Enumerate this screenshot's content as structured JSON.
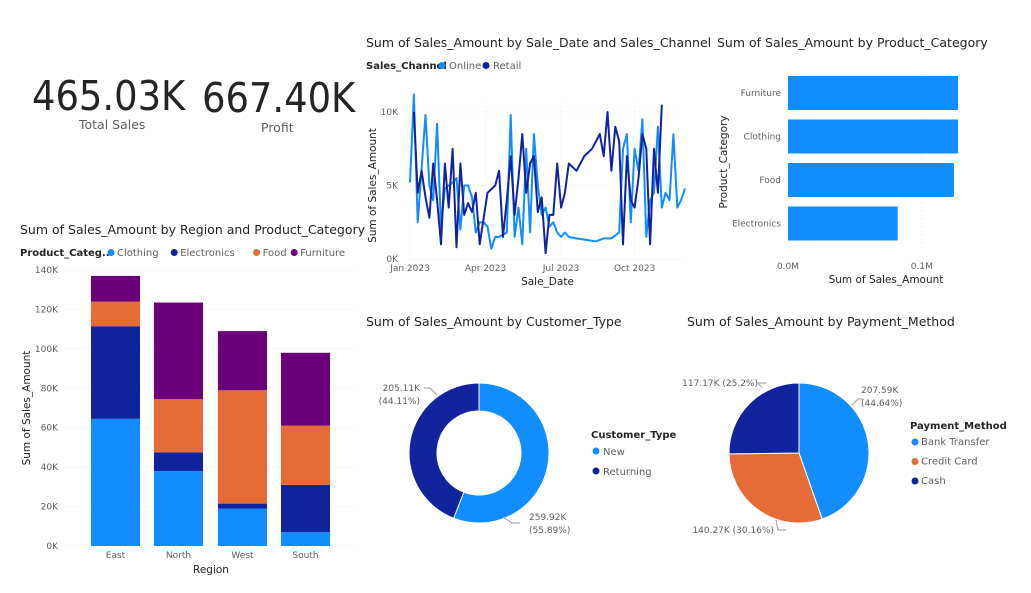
{
  "kpis": {
    "total_sales": {
      "value": "465.03K",
      "label": "Total Sales"
    },
    "profit": {
      "value": "667.40K",
      "label": "Profit"
    }
  },
  "colors": {
    "online": "#118DFF",
    "retail": "#12239E",
    "clothing": "#118DFF",
    "electronics": "#12239E",
    "food": "#E66C37",
    "furniture": "#6B007B",
    "new": "#118DFF",
    "returning": "#12239E",
    "bank_transfer": "#118DFF",
    "credit_card": "#E66C37",
    "cash": "#12239E",
    "bar": "#118DFF",
    "grid": "#e6e6e6",
    "axis_text": "#605e5c"
  },
  "titles": {
    "line": "Sum of Sales_Amount by Sale_Date and Sales_Channel",
    "hbar": "Sum of Sales_Amount by Product_Category",
    "stacked": "Sum of Sales_Amount by Region and Product_Category",
    "donut": "Sum of Sales_Amount by Customer_Type",
    "pie": "Sum of Sales_Amount by Payment_Method"
  },
  "chart_data": [
    {
      "id": "line",
      "type": "line",
      "title": "Sum of Sales_Amount by Sale_Date and Sales_Channel",
      "xlabel": "Sale_Date",
      "ylabel": "Sum of Sales_Amount",
      "legend_title": "Sales_Channel",
      "x_ticks": [
        "Jan 2023",
        "Apr 2023",
        "Jul 2023",
        "Oct 2023"
      ],
      "y_ticks": [
        "0K",
        "5K",
        "10K"
      ],
      "ylim": [
        0,
        10000
      ],
      "series": [
        {
          "name": "Online",
          "points": [
            [
              0,
              5200
            ],
            [
              1,
              11200
            ],
            [
              2,
              2500
            ],
            [
              4,
              9800
            ],
            [
              5,
              5000
            ],
            [
              6,
              4000
            ],
            [
              7,
              9200
            ],
            [
              8,
              2200
            ],
            [
              9,
              4800
            ],
            [
              10,
              5000
            ],
            [
              11,
              5200
            ],
            [
              12,
              5500
            ],
            [
              13,
              2000
            ],
            [
              14,
              5000
            ],
            [
              15,
              5000
            ],
            [
              16,
              4200
            ],
            [
              17,
              1800
            ],
            [
              18,
              2500
            ],
            [
              19,
              2500
            ],
            [
              20,
              2200
            ],
            [
              21,
              700
            ],
            [
              22,
              1500
            ],
            [
              23,
              1500
            ],
            [
              25,
              1800
            ],
            [
              26,
              9800
            ],
            [
              27,
              1500
            ],
            [
              28,
              3500
            ],
            [
              29,
              1000
            ],
            [
              30,
              7500
            ],
            [
              31,
              1800
            ],
            [
              32,
              8500
            ],
            [
              33,
              5000
            ],
            [
              34,
              3000
            ],
            [
              35,
              3500
            ],
            [
              36,
              2200
            ],
            [
              37,
              2500
            ],
            [
              38,
              1800
            ],
            [
              39,
              1500
            ],
            [
              40,
              1800
            ],
            [
              41,
              1500
            ],
            [
              43,
              1400
            ],
            [
              48,
              1200
            ],
            [
              50,
              1400
            ],
            [
              52,
              1400
            ],
            [
              54,
              1800
            ],
            [
              55,
              7500
            ],
            [
              56,
              8500
            ],
            [
              57,
              2500
            ],
            [
              58,
              7500
            ],
            [
              59,
              6000
            ],
            [
              60,
              9500
            ],
            [
              61,
              1500
            ],
            [
              62,
              4000
            ],
            [
              63,
              4500
            ],
            [
              64,
              9000
            ],
            [
              65,
              3500
            ],
            [
              66,
              4500
            ],
            [
              67,
              4000
            ],
            [
              68,
              8500
            ],
            [
              69,
              3500
            ],
            [
              70,
              4000
            ],
            [
              71,
              4800
            ]
          ]
        },
        {
          "name": "Retail",
          "points": [
            [
              1,
              10000
            ],
            [
              2,
              4500
            ],
            [
              3,
              6000
            ],
            [
              4,
              4200
            ],
            [
              5,
              2800
            ],
            [
              6,
              6500
            ],
            [
              7,
              4000
            ],
            [
              8,
              1000
            ],
            [
              9,
              6500
            ],
            [
              10,
              3500
            ],
            [
              11,
              7500
            ],
            [
              12,
              800
            ],
            [
              13,
              6500
            ],
            [
              14,
              3000
            ],
            [
              15,
              3800
            ],
            [
              16,
              3200
            ],
            [
              17,
              4500
            ],
            [
              18,
              1000
            ],
            [
              20,
              4500
            ],
            [
              22,
              5000
            ],
            [
              23,
              6000
            ],
            [
              24,
              1500
            ],
            [
              25,
              4000
            ],
            [
              26,
              7000
            ],
            [
              27,
              3000
            ],
            [
              28,
              5500
            ],
            [
              29,
              8500
            ],
            [
              30,
              4500
            ],
            [
              31,
              6500
            ],
            [
              32,
              7000
            ],
            [
              33,
              3200
            ],
            [
              34,
              4200
            ],
            [
              35,
              400
            ],
            [
              36,
              3000
            ],
            [
              37,
              3000
            ],
            [
              38,
              6500
            ],
            [
              39,
              3500
            ],
            [
              40,
              4500
            ],
            [
              41,
              6500
            ],
            [
              43,
              6000
            ],
            [
              45,
              7000
            ],
            [
              47,
              7500
            ],
            [
              49,
              8500
            ],
            [
              50,
              7000
            ],
            [
              51,
              10000
            ],
            [
              52,
              6000
            ],
            [
              53,
              9000
            ],
            [
              54,
              8000
            ],
            [
              55,
              1000
            ],
            [
              56,
              7000
            ],
            [
              57,
              4000
            ],
            [
              58,
              3500
            ],
            [
              59,
              5500
            ],
            [
              60,
              8500
            ],
            [
              61,
              7500
            ],
            [
              62,
              1000
            ],
            [
              63,
              7500
            ],
            [
              64,
              4500
            ],
            [
              65,
              10500
            ]
          ]
        }
      ]
    },
    {
      "id": "hbar",
      "type": "bar",
      "orientation": "horizontal",
      "title": "Sum of Sales_Amount by Product_Category",
      "xlabel": "Sum of Sales_Amount",
      "ylabel": "Product_Category",
      "categories": [
        "Furniture",
        "Clothing",
        "Food",
        "Electronics"
      ],
      "values": [
        127000,
        127000,
        124000,
        82000
      ],
      "x_ticks": [
        "0.0M",
        "0.1M"
      ],
      "xlim": [
        0,
        130000
      ]
    },
    {
      "id": "stacked",
      "type": "bar",
      "stacked": true,
      "title": "Sum of Sales_Amount by Region and Product_Category",
      "xlabel": "Region",
      "ylabel": "Sum of Sales_Amount",
      "legend_title": "Product_Categ...",
      "categories": [
        "East",
        "North",
        "West",
        "South"
      ],
      "series": [
        {
          "name": "Clothing",
          "values": [
            64500,
            38000,
            19000,
            7000
          ]
        },
        {
          "name": "Electronics",
          "values": [
            47000,
            9500,
            2500,
            24000
          ]
        },
        {
          "name": "Food",
          "values": [
            12500,
            27000,
            57500,
            30000
          ]
        },
        {
          "name": "Furniture",
          "values": [
            13000,
            49000,
            30000,
            37000
          ]
        }
      ],
      "y_ticks": [
        "0K",
        "20K",
        "40K",
        "60K",
        "80K",
        "100K",
        "120K",
        "140K"
      ],
      "ylim": [
        0,
        140000
      ]
    },
    {
      "id": "donut",
      "type": "pie",
      "variant": "donut",
      "title": "Sum of Sales_Amount by Customer_Type",
      "legend_title": "Customer_Type",
      "categories": [
        "New",
        "Returning"
      ],
      "values": [
        259920,
        205110
      ],
      "labels": [
        [
          "259.92K",
          "(55.89%)"
        ],
        [
          "205.11K",
          "(44.11%)"
        ]
      ]
    },
    {
      "id": "pie",
      "type": "pie",
      "title": "Sum of Sales_Amount by Payment_Method",
      "legend_title": "Payment_Method",
      "categories": [
        "Bank Transfer",
        "Credit Card",
        "Cash"
      ],
      "values": [
        207590,
        140270,
        117170
      ],
      "labels": [
        [
          "207.59K",
          "(44.64%)"
        ],
        [
          "140.27K (30.16%)"
        ],
        [
          "117.17K (25.2%)"
        ]
      ]
    }
  ]
}
